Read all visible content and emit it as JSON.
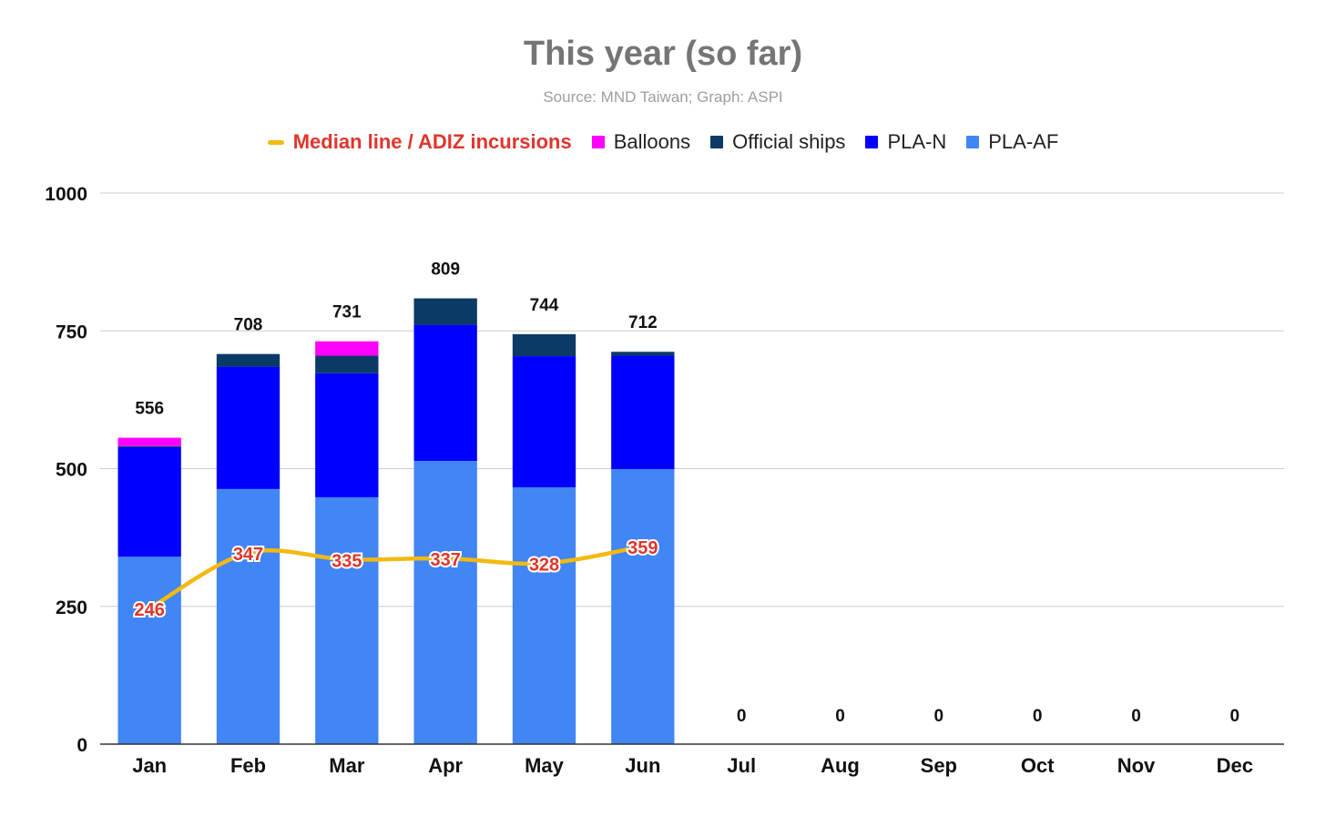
{
  "chart_data": {
    "type": "bar",
    "stacked": true,
    "title": "This year (so far)",
    "subtitle": "Source: MND Taiwan; Graph: ASPI",
    "categories": [
      "Jan",
      "Feb",
      "Mar",
      "Apr",
      "May",
      "Jun",
      "Jul",
      "Aug",
      "Sep",
      "Oct",
      "Nov",
      "Dec"
    ],
    "series": [
      {
        "name": "PLA-AF",
        "color": "#4285f4",
        "values": [
          340,
          463,
          448,
          514,
          466,
          499,
          0,
          0,
          0,
          0,
          0,
          0
        ]
      },
      {
        "name": "PLA-N",
        "color": "#0000ff",
        "values": [
          199,
          222,
          225,
          247,
          238,
          206,
          0,
          0,
          0,
          0,
          0,
          0
        ]
      },
      {
        "name": "Official ships",
        "color": "#0b3a66",
        "values": [
          2,
          23,
          32,
          48,
          40,
          7,
          0,
          0,
          0,
          0,
          0,
          0
        ]
      },
      {
        "name": "Balloons",
        "color": "#ff00ff",
        "values": [
          15,
          0,
          26,
          0,
          0,
          0,
          0,
          0,
          0,
          0,
          0,
          0
        ]
      }
    ],
    "totals": [
      556,
      708,
      731,
      809,
      744,
      712,
      0,
      0,
      0,
      0,
      0,
      0
    ],
    "line": {
      "name": "Median line / ADIZ incursions",
      "color": "#f2b90f",
      "label_color": "#e0352b",
      "values": [
        246,
        347,
        335,
        337,
        328,
        359
      ]
    },
    "ylim": [
      0,
      1000
    ],
    "yticks": [
      0,
      250,
      500,
      750,
      1000
    ],
    "legend_order": [
      "Median line / ADIZ incursions",
      "Balloons",
      "Official ships",
      "PLA-N",
      "PLA-AF"
    ],
    "legend_position": "top",
    "grid": true
  }
}
